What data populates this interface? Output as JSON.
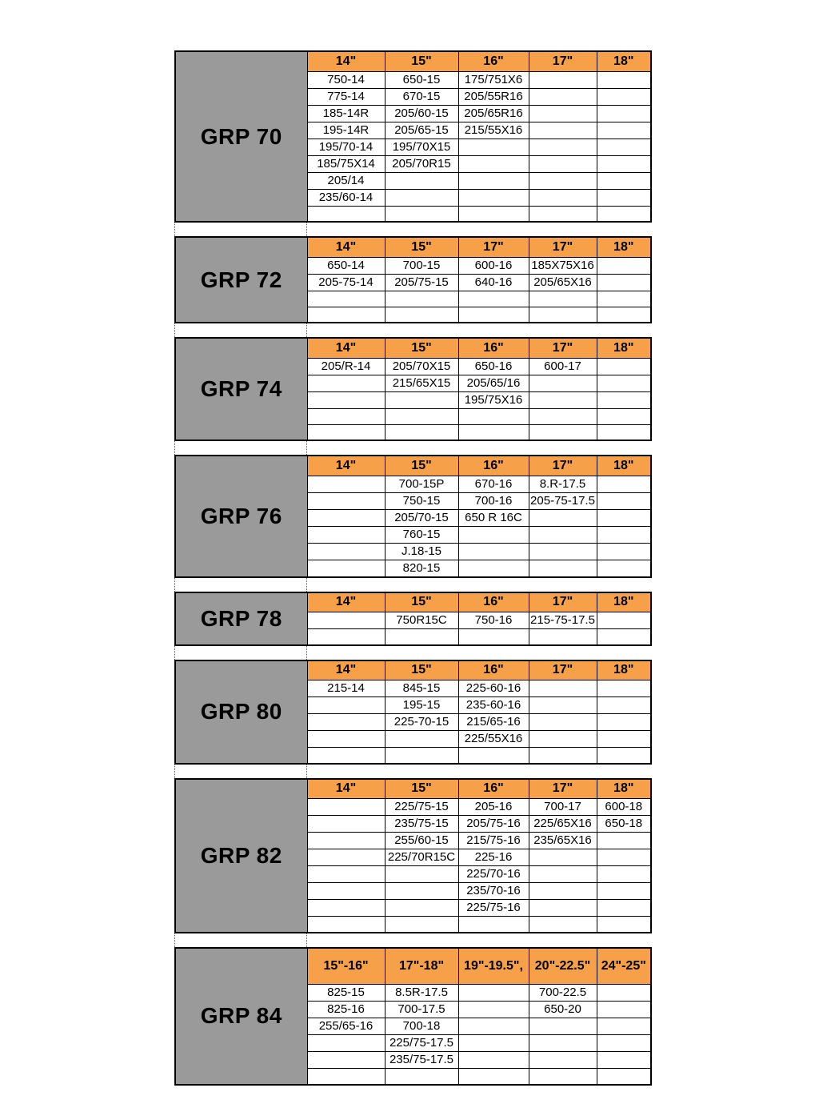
{
  "colors": {
    "header_bg": "#f6a04a",
    "label_bg": "#9a9a9a",
    "border": "#000000"
  },
  "tables": [
    {
      "label": "GRP 70",
      "headers": [
        "14\"",
        "15\"",
        "16\"",
        "17\"",
        "18\""
      ],
      "rows": [
        [
          "750-14",
          "650-15",
          "175/751X6",
          "",
          ""
        ],
        [
          "775-14",
          "670-15",
          "205/55R16",
          "",
          ""
        ],
        [
          "185-14R",
          "205/60-15",
          "205/65R16",
          "",
          ""
        ],
        [
          "195-14R",
          "205/65-15",
          "215/55X16",
          "",
          ""
        ],
        [
          "195/70-14",
          "195/70X15",
          "",
          "",
          ""
        ],
        [
          "185/75X14",
          "205/70R15",
          "",
          "",
          ""
        ],
        [
          "205/14",
          "",
          "",
          "",
          ""
        ],
        [
          "235/60-14",
          "",
          "",
          "",
          ""
        ],
        [
          "",
          "",
          "",
          "",
          ""
        ]
      ]
    },
    {
      "label": "GRP 72",
      "headers": [
        "14\"",
        "15\"",
        "17\"",
        "17\"",
        "18\""
      ],
      "rows": [
        [
          "650-14",
          "700-15",
          "600-16",
          "185X75X16",
          ""
        ],
        [
          "205-75-14",
          "205/75-15",
          "640-16",
          "205/65X16",
          ""
        ],
        [
          "",
          "",
          "",
          "",
          ""
        ],
        [
          "",
          "",
          "",
          "",
          ""
        ]
      ]
    },
    {
      "label": "GRP 74",
      "headers": [
        "14\"",
        "15\"",
        "16\"",
        "17\"",
        "18\""
      ],
      "rows": [
        [
          "205/R-14",
          "205/70X15",
          "650-16",
          "600-17",
          ""
        ],
        [
          "",
          "215/65X15",
          "205/65/16",
          "",
          ""
        ],
        [
          "",
          "",
          "195/75X16",
          "",
          ""
        ],
        [
          "",
          "",
          "",
          "",
          ""
        ],
        [
          "",
          "",
          "",
          "",
          ""
        ]
      ]
    },
    {
      "label": "GRP 76",
      "headers": [
        "14\"",
        "15\"",
        "16\"",
        "17\"",
        "18\""
      ],
      "rows": [
        [
          "",
          "700-15P",
          "670-16",
          "8.R-17.5",
          ""
        ],
        [
          "",
          "750-15",
          "700-16",
          "205-75-17.5",
          ""
        ],
        [
          "",
          "205/70-15",
          "650 R 16C",
          "",
          ""
        ],
        [
          "",
          "760-15",
          "",
          "",
          ""
        ],
        [
          "",
          "J.18-15",
          "",
          "",
          ""
        ],
        [
          "",
          "820-15",
          "",
          "",
          ""
        ]
      ]
    },
    {
      "label": "GRP 78",
      "headers": [
        "14\"",
        "15\"",
        "16\"",
        "17\"",
        "18\""
      ],
      "rows": [
        [
          "",
          "750R15C",
          "750-16",
          "215-75-17.5",
          ""
        ],
        [
          "",
          "",
          "",
          "",
          ""
        ]
      ]
    },
    {
      "label": "GRP 80",
      "headers": [
        "14\"",
        "15\"",
        "16\"",
        "17\"",
        "18\""
      ],
      "rows": [
        [
          "215-14",
          "845-15",
          "225-60-16",
          "",
          ""
        ],
        [
          "",
          "195-15",
          "235-60-16",
          "",
          ""
        ],
        [
          "",
          "225-70-15",
          "215/65-16",
          "",
          ""
        ],
        [
          "",
          "",
          "225/55X16",
          "",
          ""
        ],
        [
          "",
          "",
          "",
          "",
          ""
        ]
      ]
    },
    {
      "label": "GRP 82",
      "headers": [
        "14\"",
        "15\"",
        "16\"",
        "17\"",
        "18\""
      ],
      "rows": [
        [
          "",
          "225/75-15",
          "205-16",
          "700-17",
          "600-18"
        ],
        [
          "",
          "235/75-15",
          "205/75-16",
          "225/65X16",
          "650-18"
        ],
        [
          "",
          "255/60-15",
          "215/75-16",
          "235/65X16",
          ""
        ],
        [
          "",
          "225/70R15C",
          "225-16",
          "",
          ""
        ],
        [
          "",
          "",
          "225/70-16",
          "",
          ""
        ],
        [
          "",
          "",
          "235/70-16",
          "",
          ""
        ],
        [
          "",
          "",
          "225/75-16",
          "",
          ""
        ],
        [
          "",
          "",
          "",
          "",
          ""
        ]
      ]
    },
    {
      "label": "GRP 84",
      "headers": [
        "15\"-16\"",
        "17\"-18\"",
        "19\"-19.5\",",
        "20\"-22.5\"",
        "24\"-25\""
      ],
      "rows": [
        [
          "825-15",
          "8.5R-17.5",
          "",
          "700-22.5",
          ""
        ],
        [
          "825-16",
          "700-17.5",
          "",
          "650-20",
          ""
        ],
        [
          "255/65-16",
          "700-18",
          "",
          "",
          ""
        ],
        [
          "",
          "225/75-17.5",
          "",
          "",
          ""
        ],
        [
          "",
          "235/75-17.5",
          "",
          "",
          ""
        ],
        [
          "",
          "",
          "",
          "",
          ""
        ]
      ]
    }
  ]
}
